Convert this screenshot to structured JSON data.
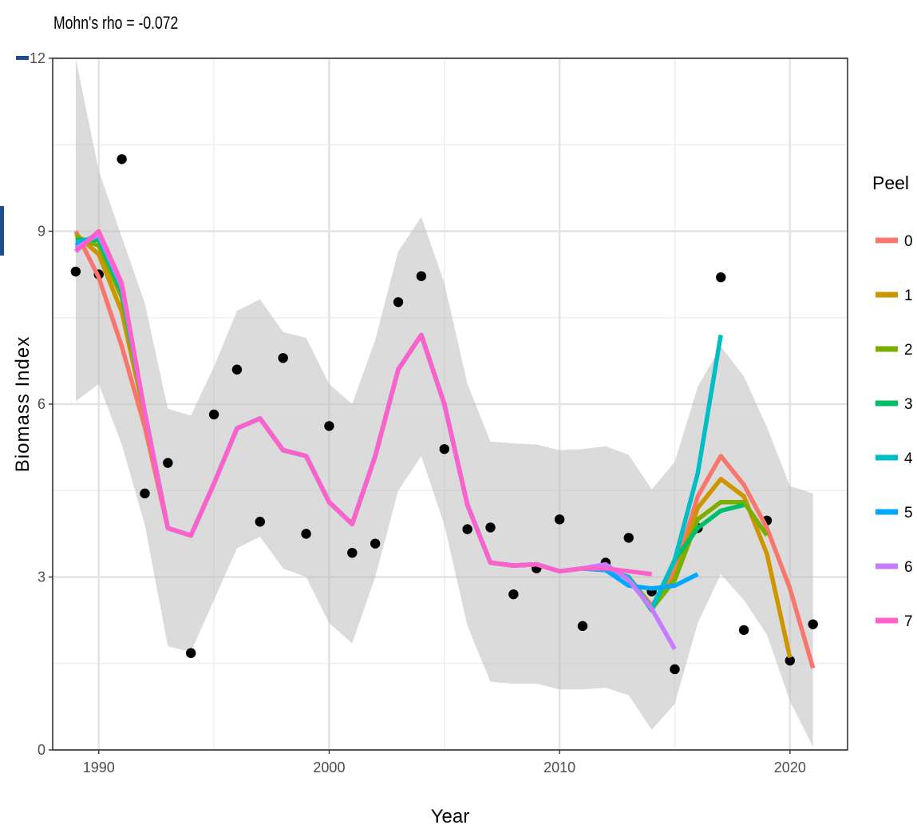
{
  "chart_data": {
    "type": "line",
    "title": "",
    "subtitle": "Mohn's rho = -0.072",
    "xlabel": "Year",
    "ylabel": "Biomass Index",
    "xlim": [
      1988,
      2022.5
    ],
    "ylim": [
      0,
      12
    ],
    "x_ticks": [
      1990,
      2000,
      2010,
      2020
    ],
    "y_ticks": [
      0,
      3,
      6,
      9,
      12
    ],
    "grid": true,
    "legend": {
      "title": "Peel",
      "position": "right"
    },
    "observations": {
      "x": [
        1989,
        1990,
        1991,
        1992,
        1993,
        1994,
        1995,
        1996,
        1997,
        1998,
        1999,
        2000,
        2001,
        2002,
        2003,
        2004,
        2005,
        2006,
        2007,
        2008,
        2009,
        2010,
        2011,
        2012,
        2013,
        2014,
        2015,
        2016,
        2017,
        2018,
        2019,
        2020,
        2021
      ],
      "y": [
        8.3,
        8.25,
        10.25,
        4.45,
        4.98,
        1.68,
        5.82,
        6.6,
        3.96,
        6.8,
        3.75,
        5.62,
        3.42,
        3.58,
        7.77,
        8.22,
        5.22,
        3.83,
        3.86,
        2.7,
        3.15,
        4.0,
        2.15,
        3.25,
        3.68,
        2.75,
        1.4,
        3.85,
        8.2,
        2.08,
        3.98,
        1.55,
        2.18
      ]
    },
    "ribbon": {
      "x": [
        1989,
        1990,
        1991,
        1992,
        1993,
        1994,
        1995,
        1996,
        1997,
        1998,
        1999,
        2000,
        2001,
        2002,
        2003,
        2004,
        2005,
        2006,
        2007,
        2008,
        2009,
        2010,
        2011,
        2012,
        2013,
        2014,
        2015,
        2016,
        2017,
        2018,
        2019,
        2020,
        2021
      ],
      "lower": [
        6.05,
        6.35,
        5.3,
        3.9,
        1.8,
        1.7,
        2.6,
        3.5,
        3.7,
        3.15,
        3.0,
        2.2,
        1.85,
        3.0,
        4.5,
        5.1,
        3.9,
        2.15,
        1.18,
        1.15,
        1.15,
        1.05,
        1.05,
        1.08,
        0.95,
        0.35,
        0.8,
        2.2,
        3.05,
        2.6,
        2.0,
        0.85,
        0.05
      ],
      "upper": [
        12.0,
        10.05,
        8.9,
        7.75,
        5.92,
        5.8,
        6.65,
        7.62,
        7.82,
        7.25,
        7.15,
        6.35,
        6.0,
        7.12,
        8.65,
        9.25,
        8.1,
        6.35,
        5.35,
        5.32,
        5.3,
        5.2,
        5.22,
        5.27,
        5.12,
        4.52,
        5.0,
        6.3,
        7.0,
        6.48,
        5.6,
        4.58,
        4.45
      ]
    },
    "series": [
      {
        "name": "0",
        "color": "#F8766D",
        "x": [
          1989,
          1990,
          1991,
          1992,
          1993,
          1994,
          1995,
          1996,
          1997,
          1998,
          1999,
          2000,
          2001,
          2002,
          2003,
          2004,
          2005,
          2006,
          2007,
          2008,
          2009,
          2010,
          2011,
          2012,
          2013,
          2014,
          2015,
          2016,
          2017,
          2018,
          2019,
          2020,
          2021
        ],
        "y": [
          9.0,
          8.2,
          7.0,
          5.6,
          3.85,
          3.72,
          4.62,
          5.58,
          5.75,
          5.2,
          5.1,
          4.3,
          3.92,
          5.1,
          6.6,
          7.2,
          6.0,
          4.25,
          3.25,
          3.2,
          3.22,
          3.1,
          3.15,
          3.12,
          3.0,
          2.5,
          3.1,
          4.4,
          5.1,
          4.6,
          3.85,
          2.8,
          1.42
        ]
      },
      {
        "name": "1",
        "color": "#CD9600",
        "x": [
          1989,
          1990,
          1991,
          1992,
          1993,
          1994,
          1995,
          1996,
          1997,
          1998,
          1999,
          2000,
          2001,
          2002,
          2003,
          2004,
          2005,
          2006,
          2007,
          2008,
          2009,
          2010,
          2011,
          2012,
          2013,
          2014,
          2015,
          2016,
          2017,
          2018,
          2019,
          2020
        ],
        "y": [
          8.95,
          8.6,
          7.6,
          5.8,
          3.85,
          3.72,
          4.62,
          5.58,
          5.75,
          5.2,
          5.1,
          4.3,
          3.92,
          5.1,
          6.6,
          7.2,
          6.0,
          4.25,
          3.25,
          3.2,
          3.22,
          3.1,
          3.15,
          3.12,
          3.0,
          2.48,
          3.0,
          4.2,
          4.7,
          4.4,
          3.4,
          1.6
        ]
      },
      {
        "name": "2",
        "color": "#7CAE00",
        "x": [
          1989,
          1990,
          1991,
          1992,
          1993,
          1994,
          1995,
          1996,
          1997,
          1998,
          1999,
          2000,
          2001,
          2002,
          2003,
          2004,
          2005,
          2006,
          2007,
          2008,
          2009,
          2010,
          2011,
          2012,
          2013,
          2014,
          2015,
          2016,
          2017,
          2018,
          2019
        ],
        "y": [
          8.9,
          8.75,
          7.85,
          5.85,
          3.85,
          3.72,
          4.62,
          5.58,
          5.75,
          5.2,
          5.1,
          4.3,
          3.92,
          5.1,
          6.6,
          7.2,
          6.0,
          4.25,
          3.25,
          3.2,
          3.22,
          3.1,
          3.15,
          3.12,
          3.0,
          2.45,
          2.95,
          4.0,
          4.3,
          4.3,
          3.72
        ]
      },
      {
        "name": "3",
        "color": "#00BE67",
        "x": [
          1989,
          1990,
          1991,
          1992,
          1993,
          1994,
          1995,
          1996,
          1997,
          1998,
          1999,
          2000,
          2001,
          2002,
          2003,
          2004,
          2005,
          2006,
          2007,
          2008,
          2009,
          2010,
          2011,
          2012,
          2013,
          2014,
          2015,
          2016,
          2017,
          2018
        ],
        "y": [
          8.85,
          8.85,
          7.95,
          5.85,
          3.85,
          3.72,
          4.62,
          5.58,
          5.75,
          5.2,
          5.1,
          4.3,
          3.92,
          5.1,
          6.6,
          7.2,
          6.0,
          4.25,
          3.25,
          3.2,
          3.22,
          3.1,
          3.15,
          3.12,
          3.0,
          2.42,
          3.3,
          3.85,
          4.15,
          4.25
        ]
      },
      {
        "name": "4",
        "color": "#00BFC4",
        "x": [
          1989,
          1990,
          1991,
          1992,
          1993,
          1994,
          1995,
          1996,
          1997,
          1998,
          1999,
          2000,
          2001,
          2002,
          2003,
          2004,
          2005,
          2006,
          2007,
          2008,
          2009,
          2010,
          2011,
          2012,
          2013,
          2014,
          2015,
          2016,
          2017
        ],
        "y": [
          8.8,
          8.9,
          8.0,
          5.85,
          3.85,
          3.72,
          4.62,
          5.58,
          5.75,
          5.2,
          5.1,
          4.3,
          3.92,
          5.1,
          6.6,
          7.2,
          6.0,
          4.25,
          3.25,
          3.2,
          3.22,
          3.1,
          3.15,
          3.12,
          3.0,
          2.45,
          3.3,
          4.8,
          7.2
        ]
      },
      {
        "name": "5",
        "color": "#00A9FF",
        "x": [
          1989,
          1990,
          1991,
          1992,
          1993,
          1994,
          1995,
          1996,
          1997,
          1998,
          1999,
          2000,
          2001,
          2002,
          2003,
          2004,
          2005,
          2006,
          2007,
          2008,
          2009,
          2010,
          2011,
          2012,
          2013,
          2014,
          2015,
          2016
        ],
        "y": [
          8.75,
          8.95,
          8.05,
          5.85,
          3.85,
          3.72,
          4.62,
          5.58,
          5.75,
          5.2,
          5.1,
          4.3,
          3.92,
          5.1,
          6.6,
          7.2,
          6.0,
          4.25,
          3.25,
          3.2,
          3.22,
          3.1,
          3.15,
          3.12,
          2.85,
          2.8,
          2.85,
          3.05
        ]
      },
      {
        "name": "6",
        "color": "#C77CFF",
        "x": [
          1989,
          1990,
          1991,
          1992,
          1993,
          1994,
          1995,
          1996,
          1997,
          1998,
          1999,
          2000,
          2001,
          2002,
          2003,
          2004,
          2005,
          2006,
          2007,
          2008,
          2009,
          2010,
          2011,
          2012,
          2013,
          2014,
          2015
        ],
        "y": [
          8.7,
          8.95,
          8.05,
          5.85,
          3.85,
          3.72,
          4.62,
          5.58,
          5.75,
          5.2,
          5.1,
          4.3,
          3.92,
          5.1,
          6.6,
          7.2,
          6.0,
          4.25,
          3.25,
          3.2,
          3.22,
          3.1,
          3.15,
          3.22,
          2.95,
          2.45,
          1.75
        ]
      },
      {
        "name": "7",
        "color": "#FF61CC",
        "x": [
          1989,
          1990,
          1991,
          1992,
          1993,
          1994,
          1995,
          1996,
          1997,
          1998,
          1999,
          2000,
          2001,
          2002,
          2003,
          2004,
          2005,
          2006,
          2007,
          2008,
          2009,
          2010,
          2011,
          2012,
          2013,
          2014
        ],
        "y": [
          8.65,
          9.0,
          8.1,
          5.85,
          3.85,
          3.72,
          4.62,
          5.58,
          5.75,
          5.2,
          5.1,
          4.3,
          3.92,
          5.1,
          6.6,
          7.2,
          6.0,
          4.25,
          3.25,
          3.2,
          3.22,
          3.1,
          3.15,
          3.15,
          3.1,
          3.05
        ]
      }
    ]
  }
}
